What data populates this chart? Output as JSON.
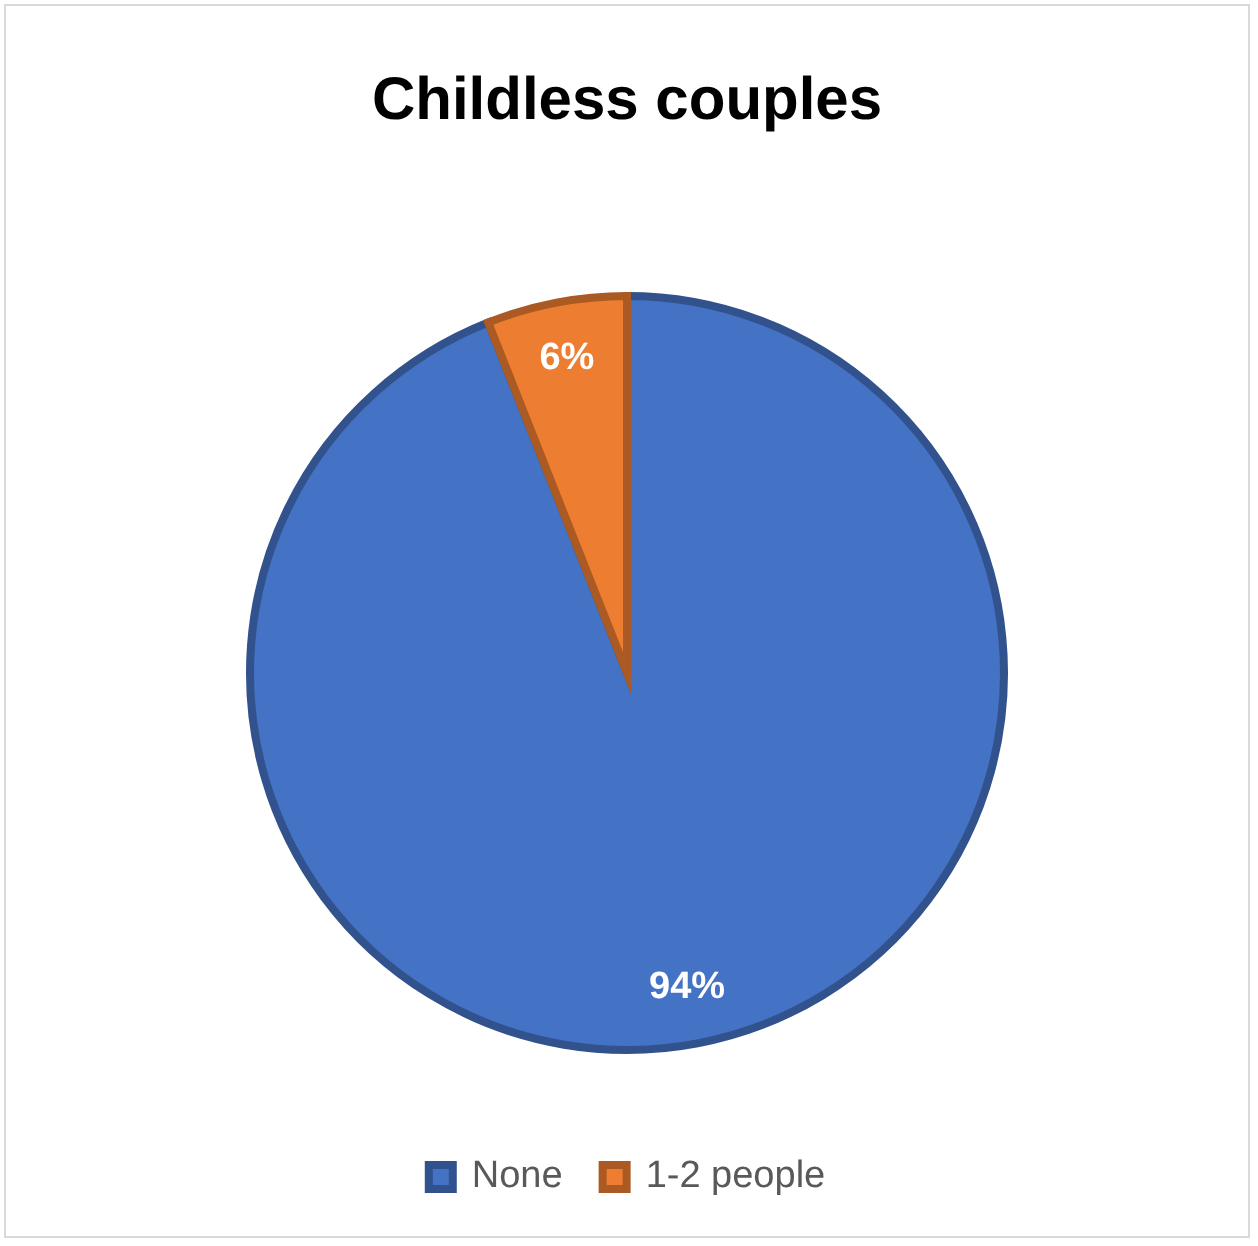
{
  "chart_data": {
    "type": "pie",
    "title": "Childless couples",
    "categories": [
      "None",
      "1-2 people"
    ],
    "values": [
      94,
      6
    ],
    "colors": [
      "#4472c4",
      "#ed7d31"
    ],
    "value_labels": [
      "94%",
      "6%"
    ],
    "legend": "bottom"
  }
}
